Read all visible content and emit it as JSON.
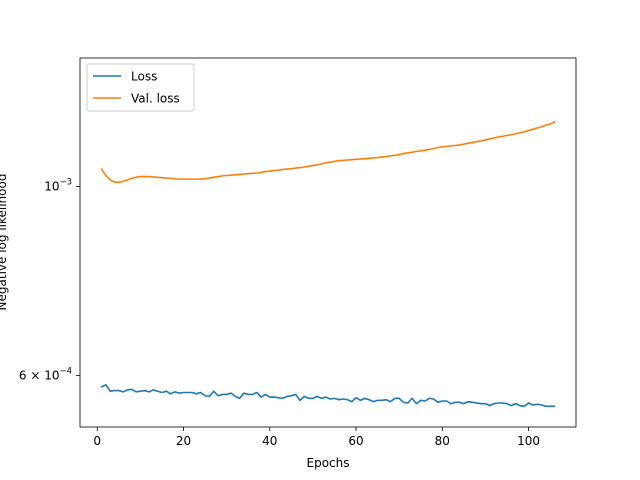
{
  "chart_data": {
    "type": "line",
    "title": "",
    "xlabel": "Epochs",
    "ylabel": "Negative log likelihood",
    "xlim": [
      -4,
      111
    ],
    "ylim": [
      0.000522,
      0.001415
    ],
    "yscale": "log",
    "grid": false,
    "legend_position": "top-left",
    "x_ticks": [
      0,
      20,
      40,
      60,
      80,
      100
    ],
    "y_ticks": [
      {
        "value": 0.001,
        "base": "10",
        "exp": "−3",
        "mantissa": ""
      },
      {
        "value": 0.0006,
        "base": "10",
        "exp": "−4",
        "mantissa": "6 × "
      }
    ],
    "x": [
      1,
      2,
      3,
      4,
      5,
      6,
      7,
      8,
      9,
      10,
      11,
      12,
      13,
      14,
      15,
      16,
      17,
      18,
      19,
      20,
      21,
      22,
      23,
      24,
      25,
      26,
      27,
      28,
      29,
      30,
      31,
      32,
      33,
      34,
      35,
      36,
      37,
      38,
      39,
      40,
      41,
      42,
      43,
      44,
      45,
      46,
      47,
      48,
      49,
      50,
      51,
      52,
      53,
      54,
      55,
      56,
      57,
      58,
      59,
      60,
      61,
      62,
      63,
      64,
      65,
      66,
      67,
      68,
      69,
      70,
      71,
      72,
      73,
      74,
      75,
      76,
      77,
      78,
      79,
      80,
      81,
      82,
      83,
      84,
      85,
      86,
      87,
      88,
      89,
      90,
      91,
      92,
      93,
      94,
      95,
      96,
      97,
      98,
      99,
      100,
      101,
      102,
      103,
      104,
      105,
      106
    ],
    "series": [
      {
        "name": "Loss",
        "color": "#1f77b4",
        "values": [
          0.000582,
          0.000585,
          0.000575,
          0.000576,
          0.000576,
          0.000574,
          0.000577,
          0.000578,
          0.000574,
          0.000575,
          0.000576,
          0.000574,
          0.000577,
          0.000575,
          0.000573,
          0.000575,
          0.000571,
          0.000574,
          0.000572,
          0.000573,
          0.000573,
          0.000573,
          0.000571,
          0.000573,
          0.000568,
          0.000567,
          0.000575,
          0.000568,
          0.00057,
          0.00057,
          0.000572,
          0.000567,
          0.000564,
          0.000572,
          0.00057,
          0.00057,
          0.000573,
          0.000566,
          0.00057,
          0.000566,
          0.000566,
          0.000565,
          0.000564,
          0.000567,
          0.000568,
          0.00057,
          0.000561,
          0.000567,
          0.000564,
          0.000564,
          0.000567,
          0.000564,
          0.000566,
          0.000563,
          0.000564,
          0.000562,
          0.000563,
          0.000562,
          0.000559,
          0.000565,
          0.000561,
          0.000564,
          0.000562,
          0.000559,
          0.000561,
          0.000561,
          0.000562,
          0.000559,
          0.000564,
          0.000564,
          0.000558,
          0.000557,
          0.000564,
          0.000556,
          0.000561,
          0.00056,
          0.000564,
          0.000563,
          0.000558,
          0.00056,
          0.00056,
          0.000556,
          0.000558,
          0.000558,
          0.000556,
          0.000559,
          0.000558,
          0.000557,
          0.000556,
          0.000556,
          0.000553,
          0.000556,
          0.000557,
          0.000557,
          0.000556,
          0.000553,
          0.000556,
          0.000553,
          0.000552,
          0.000557,
          0.000554,
          0.000555,
          0.000554,
          0.000552,
          0.000552,
          0.000552
        ]
      },
      {
        "name": "Val. loss",
        "color": "#ff7f0e",
        "values": [
          0.001048,
          0.00103,
          0.001018,
          0.001012,
          0.001011,
          0.001014,
          0.001018,
          0.001022,
          0.001025,
          0.001027,
          0.001027,
          0.001027,
          0.001026,
          0.001025,
          0.001024,
          0.001023,
          0.001022,
          0.001021,
          0.00102,
          0.00102,
          0.00102,
          0.00102,
          0.00102,
          0.00102,
          0.001021,
          0.001023,
          0.001025,
          0.001027,
          0.001029,
          0.00103,
          0.001031,
          0.001032,
          0.001033,
          0.001034,
          0.001035,
          0.001036,
          0.001037,
          0.001039,
          0.001041,
          0.001042,
          0.001044,
          0.001045,
          0.001047,
          0.001048,
          0.001049,
          0.001051,
          0.001052,
          0.001054,
          0.001056,
          0.001058,
          0.00106,
          0.001063,
          0.001066,
          0.001068,
          0.00107,
          0.001072,
          0.001073,
          0.001074,
          0.001075,
          0.001076,
          0.001077,
          0.001078,
          0.001079,
          0.00108,
          0.001081,
          0.001083,
          0.001084,
          0.001086,
          0.001088,
          0.00109,
          0.001093,
          0.001095,
          0.001097,
          0.001099,
          0.001101,
          0.001103,
          0.001105,
          0.001108,
          0.001111,
          0.001113,
          0.001114,
          0.001116,
          0.001117,
          0.001119,
          0.001121,
          0.001124,
          0.001126,
          0.001129,
          0.001131,
          0.001134,
          0.001137,
          0.00114,
          0.001143,
          0.001145,
          0.001148,
          0.00115,
          0.001153,
          0.001156,
          0.001159,
          0.001163,
          0.001167,
          0.001171,
          0.001175,
          0.00118,
          0.001184,
          0.00119
        ]
      }
    ]
  }
}
